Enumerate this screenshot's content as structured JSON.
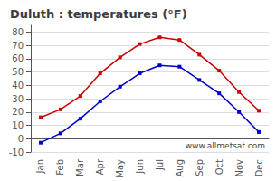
{
  "chart_data": {
    "type": "line",
    "title": "Duluth : temperatures (°F)",
    "categories": [
      "Jan",
      "Feb",
      "Mar",
      "Apr",
      "May",
      "Jun",
      "Jul",
      "Aug",
      "Sep",
      "Oct",
      "Nov",
      "Dec"
    ],
    "series": [
      {
        "color": "#cc0000",
        "marker": "square",
        "values": [
          16,
          22,
          32,
          49,
          61,
          71,
          76,
          74,
          63,
          51,
          35,
          21
        ]
      },
      {
        "color": "#0000cc",
        "marker": "square",
        "values": [
          -3,
          4,
          15,
          28,
          39,
          49,
          55,
          54,
          44,
          34,
          20,
          5
        ]
      }
    ],
    "ylim": [
      -10,
      85
    ],
    "yticks": [
      -10,
      0,
      10,
      20,
      30,
      40,
      50,
      60,
      70,
      80
    ],
    "grid": true,
    "annotations": [
      "www.allmetsat.com"
    ]
  }
}
